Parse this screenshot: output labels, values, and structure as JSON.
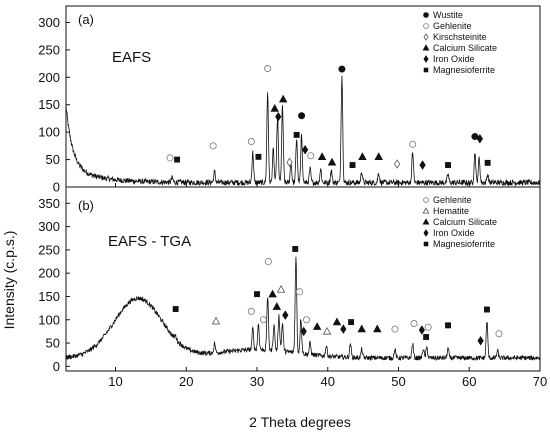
{
  "chart_data": [
    {
      "type": "line",
      "panel_label": "(a)",
      "sample_label": "EAFS",
      "xlabel": "2 Theta degrees",
      "ylabel": "Intensity (c.p.s.)",
      "xlim": [
        3,
        70
      ],
      "ylim": [
        0,
        330
      ],
      "y_ticks": [
        0,
        50,
        100,
        150,
        200,
        250,
        300
      ],
      "legend": {
        "placement": "top-right",
        "entries": [
          {
            "label": "Wustite",
            "marker": "filled-circle"
          },
          {
            "label": "Gehlenite",
            "marker": "open-circle"
          },
          {
            "label": "Kirschsteinite",
            "marker": "open-diamond"
          },
          {
            "label": "Calcium Silicate",
            "marker": "filled-triangle"
          },
          {
            "label": "Iron Oxide",
            "marker": "filled-diamond"
          },
          {
            "label": "Magnesioferrite",
            "marker": "filled-square"
          }
        ]
      },
      "peaks": [
        {
          "x": 29.4,
          "h": 55
        },
        {
          "x": 31.5,
          "h": 165
        },
        {
          "x": 32.3,
          "h": 60
        },
        {
          "x": 32.9,
          "h": 120
        },
        {
          "x": 33.6,
          "h": 140
        },
        {
          "x": 34.8,
          "h": 35
        },
        {
          "x": 35.6,
          "h": 80
        },
        {
          "x": 36.3,
          "h": 85
        },
        {
          "x": 37.5,
          "h": 25
        },
        {
          "x": 39.0,
          "h": 25
        },
        {
          "x": 40.5,
          "h": 22
        },
        {
          "x": 42.0,
          "h": 195
        },
        {
          "x": 44.8,
          "h": 20
        },
        {
          "x": 47.2,
          "h": 18
        },
        {
          "x": 52.0,
          "h": 55
        },
        {
          "x": 57.0,
          "h": 15
        },
        {
          "x": 60.8,
          "h": 55
        },
        {
          "x": 61.4,
          "h": 45
        },
        {
          "x": 62.6,
          "h": 15
        },
        {
          "x": 24.0,
          "h": 20
        },
        {
          "x": 18.0,
          "h": 8
        }
      ],
      "markers": [
        {
          "x": 17.7,
          "y": 53,
          "type": "open-circle"
        },
        {
          "x": 18.7,
          "y": 50,
          "type": "filled-square"
        },
        {
          "x": 23.8,
          "y": 75,
          "type": "open-circle"
        },
        {
          "x": 29.2,
          "y": 83,
          "type": "open-circle"
        },
        {
          "x": 30.2,
          "y": 55,
          "type": "filled-square"
        },
        {
          "x": 31.5,
          "y": 216,
          "type": "open-circle"
        },
        {
          "x": 32.5,
          "y": 143,
          "type": "filled-triangle"
        },
        {
          "x": 33.0,
          "y": 128,
          "type": "filled-diamond"
        },
        {
          "x": 33.7,
          "y": 160,
          "type": "filled-triangle"
        },
        {
          "x": 34.6,
          "y": 45,
          "type": "open-diamond"
        },
        {
          "x": 35.6,
          "y": 95,
          "type": "filled-square"
        },
        {
          "x": 36.3,
          "y": 130,
          "type": "filled-circle"
        },
        {
          "x": 36.8,
          "y": 68,
          "type": "filled-diamond"
        },
        {
          "x": 37.6,
          "y": 57,
          "type": "open-circle"
        },
        {
          "x": 39.2,
          "y": 55,
          "type": "filled-triangle"
        },
        {
          "x": 40.6,
          "y": 45,
          "type": "filled-triangle"
        },
        {
          "x": 42.0,
          "y": 215,
          "type": "filled-circle"
        },
        {
          "x": 43.5,
          "y": 40,
          "type": "filled-square"
        },
        {
          "x": 44.9,
          "y": 55,
          "type": "filled-triangle"
        },
        {
          "x": 47.2,
          "y": 55,
          "type": "filled-triangle"
        },
        {
          "x": 49.8,
          "y": 42,
          "type": "open-diamond"
        },
        {
          "x": 52.0,
          "y": 78,
          "type": "open-circle"
        },
        {
          "x": 53.4,
          "y": 40,
          "type": "filled-diamond"
        },
        {
          "x": 57.0,
          "y": 40,
          "type": "filled-square"
        },
        {
          "x": 60.8,
          "y": 92,
          "type": "filled-circle"
        },
        {
          "x": 61.5,
          "y": 88,
          "type": "filled-diamond"
        },
        {
          "x": 62.6,
          "y": 44,
          "type": "filled-square"
        }
      ]
    },
    {
      "type": "line",
      "panel_label": "(b)",
      "sample_label": "EAFS - TGA",
      "xlabel": "2 Theta degrees",
      "ylabel": "Intensity (c.p.s.)",
      "xlim": [
        3,
        70
      ],
      "ylim": [
        -10,
        385
      ],
      "x_ticks": [
        10,
        20,
        30,
        40,
        50,
        60,
        70
      ],
      "y_ticks": [
        0,
        50,
        100,
        150,
        200,
        250,
        300,
        350
      ],
      "legend": {
        "placement": "top-right",
        "entries": [
          {
            "label": "Gehlenite",
            "marker": "open-circle"
          },
          {
            "label": "Hematite",
            "marker": "open-triangle"
          },
          {
            "label": "Calcium Silicate",
            "marker": "filled-triangle"
          },
          {
            "label": "Iron Oxide",
            "marker": "filled-diamond"
          },
          {
            "label": "Magnesioferrite",
            "marker": "filled-square"
          }
        ]
      },
      "peaks": [
        {
          "x": 24.0,
          "h": 20
        },
        {
          "x": 29.4,
          "h": 45
        },
        {
          "x": 30.2,
          "h": 55
        },
        {
          "x": 31.5,
          "h": 115
        },
        {
          "x": 32.4,
          "h": 55
        },
        {
          "x": 33.1,
          "h": 75
        },
        {
          "x": 33.6,
          "h": 60
        },
        {
          "x": 35.5,
          "h": 205
        },
        {
          "x": 36.2,
          "h": 75
        },
        {
          "x": 37.5,
          "h": 25
        },
        {
          "x": 39.8,
          "h": 22
        },
        {
          "x": 43.2,
          "h": 30
        },
        {
          "x": 44.8,
          "h": 18
        },
        {
          "x": 49.5,
          "h": 18
        },
        {
          "x": 52.0,
          "h": 30
        },
        {
          "x": 53.5,
          "h": 20
        },
        {
          "x": 54.0,
          "h": 22
        },
        {
          "x": 57.0,
          "h": 20
        },
        {
          "x": 62.5,
          "h": 80
        },
        {
          "x": 64.0,
          "h": 15
        },
        {
          "x": 18.5,
          "h": 8
        }
      ],
      "markers": [
        {
          "x": 18.5,
          "y": 123,
          "type": "filled-square"
        },
        {
          "x": 24.2,
          "y": 97,
          "type": "open-triangle"
        },
        {
          "x": 29.2,
          "y": 118,
          "type": "open-circle"
        },
        {
          "x": 30.0,
          "y": 155,
          "type": "filled-square"
        },
        {
          "x": 30.9,
          "y": 100,
          "type": "open-circle"
        },
        {
          "x": 31.6,
          "y": 225,
          "type": "open-circle"
        },
        {
          "x": 32.2,
          "y": 155,
          "type": "filled-triangle"
        },
        {
          "x": 32.8,
          "y": 128,
          "type": "filled-triangle"
        },
        {
          "x": 33.4,
          "y": 165,
          "type": "open-triangle"
        },
        {
          "x": 34.0,
          "y": 110,
          "type": "filled-diamond"
        },
        {
          "x": 35.4,
          "y": 252,
          "type": "filled-square"
        },
        {
          "x": 36.0,
          "y": 160,
          "type": "open-circle"
        },
        {
          "x": 37.0,
          "y": 100,
          "type": "open-circle"
        },
        {
          "x": 36.6,
          "y": 75,
          "type": "filled-diamond"
        },
        {
          "x": 38.5,
          "y": 85,
          "type": "filled-triangle"
        },
        {
          "x": 39.9,
          "y": 75,
          "type": "open-triangle"
        },
        {
          "x": 41.3,
          "y": 95,
          "type": "filled-triangle"
        },
        {
          "x": 42.2,
          "y": 80,
          "type": "filled-diamond"
        },
        {
          "x": 43.3,
          "y": 95,
          "type": "filled-square"
        },
        {
          "x": 44.8,
          "y": 80,
          "type": "filled-triangle"
        },
        {
          "x": 47.0,
          "y": 80,
          "type": "filled-triangle"
        },
        {
          "x": 49.5,
          "y": 80,
          "type": "open-circle"
        },
        {
          "x": 52.2,
          "y": 92,
          "type": "open-circle"
        },
        {
          "x": 53.3,
          "y": 78,
          "type": "filled-diamond"
        },
        {
          "x": 54.2,
          "y": 84,
          "type": "open-circle"
        },
        {
          "x": 53.9,
          "y": 63,
          "type": "filled-square"
        },
        {
          "x": 57.0,
          "y": 88,
          "type": "filled-square"
        },
        {
          "x": 61.6,
          "y": 55,
          "type": "filled-diamond"
        },
        {
          "x": 62.5,
          "y": 122,
          "type": "filled-square"
        },
        {
          "x": 64.2,
          "y": 70,
          "type": "open-circle"
        }
      ]
    }
  ]
}
